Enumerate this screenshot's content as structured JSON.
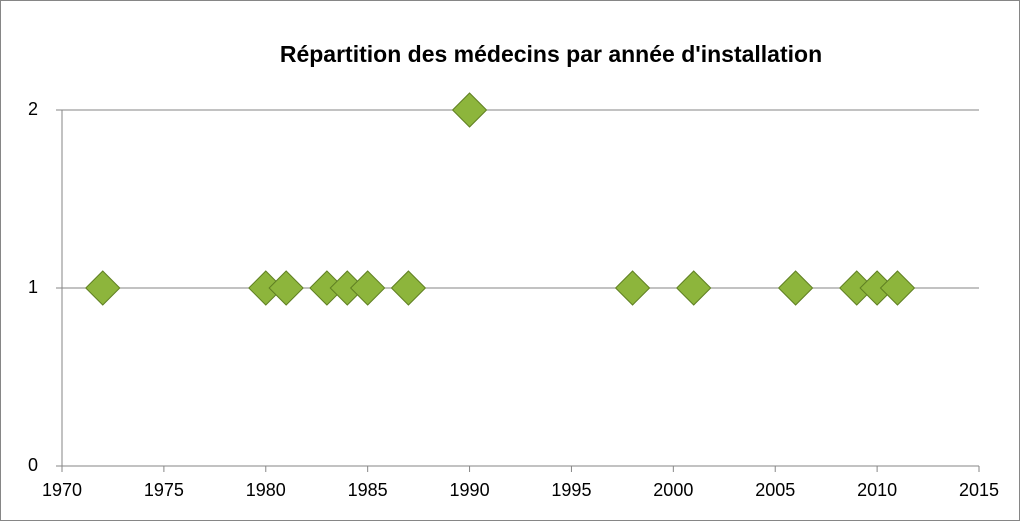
{
  "chart_data": {
    "type": "scatter",
    "title": "Répartition des médecins par année d'installation",
    "x": [
      1972,
      1980,
      1981,
      1983,
      1984,
      1985,
      1987,
      1990,
      1998,
      2001,
      2006,
      2009,
      2010,
      2011
    ],
    "values": [
      1,
      1,
      1,
      1,
      1,
      1,
      1,
      2,
      1,
      1,
      1,
      1,
      1,
      1
    ],
    "color": "#8db53c",
    "xlim": [
      1970,
      2015
    ],
    "xticks": [
      1970,
      1975,
      1980,
      1985,
      1990,
      1995,
      2000,
      2005,
      2010,
      2015
    ],
    "ylim": [
      0,
      2
    ],
    "yticks": [
      0,
      1,
      2
    ],
    "grid": true
  }
}
